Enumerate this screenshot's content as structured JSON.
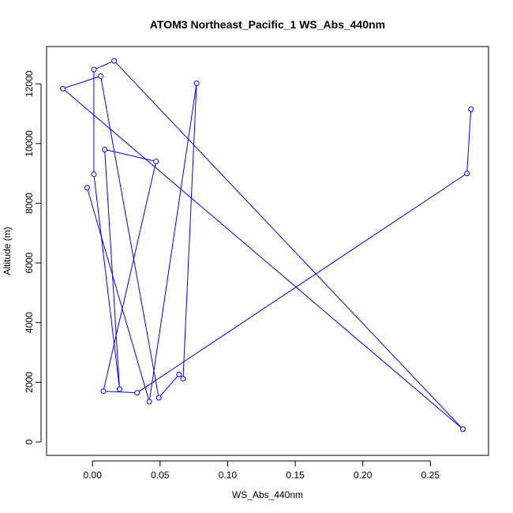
{
  "chart_data": {
    "type": "line",
    "title": "ATOM3 Northeast_Pacific_1 WS_Abs_440nm",
    "xlabel": "WS_Abs_440nm",
    "ylabel": "Altitude (m)",
    "xlim": [
      -0.034,
      0.293
    ],
    "ylim": [
      -450,
      13250
    ],
    "xticks": [
      0.0,
      0.05,
      0.1,
      0.15,
      0.2,
      0.25
    ],
    "xtick_labels": [
      "0.00",
      "0.05",
      "0.10",
      "0.15",
      "0.20",
      "0.25"
    ],
    "yticks": [
      0,
      2000,
      4000,
      6000,
      8000,
      10000,
      12000
    ],
    "ytick_labels": [
      "0",
      "2000",
      "4000",
      "6000",
      "8000",
      "10000",
      "12000"
    ],
    "grid": false,
    "legend": "none",
    "markers": "open-circle",
    "color": "#0000ff",
    "series": [
      {
        "points": [
          {
            "x": 0.28,
            "y": 11150
          },
          {
            "x": 0.277,
            "y": 9000
          },
          {
            "x": 0.033,
            "y": 1650
          },
          {
            "x": 0.008,
            "y": 1700
          },
          {
            "x": 0.047,
            "y": 9400
          },
          {
            "x": 0.009,
            "y": 9800
          },
          {
            "x": 0.02,
            "y": 1770
          },
          {
            "x": 0.001,
            "y": 8970
          },
          {
            "x": 0.001,
            "y": 12480
          },
          {
            "x": 0.016,
            "y": 12770
          },
          {
            "x": 0.274,
            "y": 430
          },
          {
            "x": -0.022,
            "y": 11840
          },
          {
            "x": 0.006,
            "y": 12260
          },
          {
            "x": 0.049,
            "y": 1480
          },
          {
            "x": 0.064,
            "y": 2260
          },
          {
            "x": 0.067,
            "y": 2120
          },
          {
            "x": 0.077,
            "y": 12020
          },
          {
            "x": 0.042,
            "y": 1350
          },
          {
            "x": -0.004,
            "y": 8520
          }
        ]
      }
    ]
  }
}
